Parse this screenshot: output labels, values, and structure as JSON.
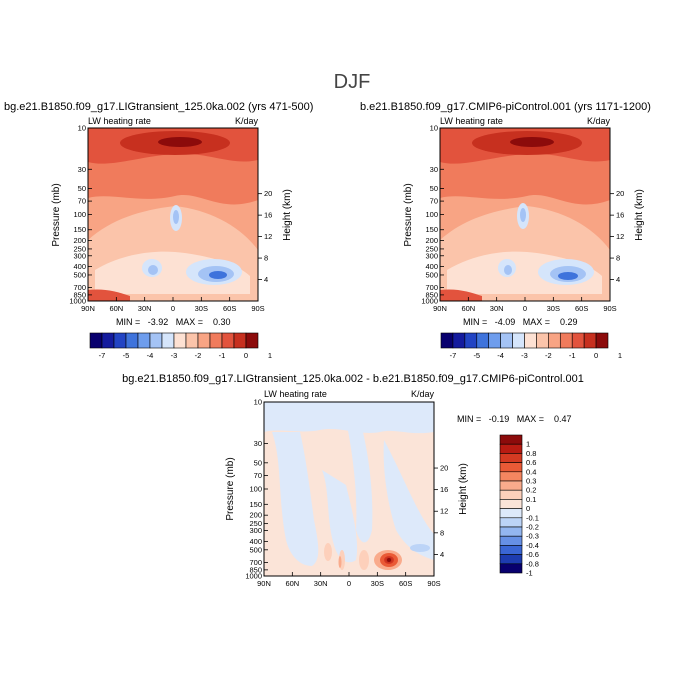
{
  "season": "DJF",
  "panels": [
    {
      "title": "bg.e21.B1850.f09_g17.LIGtransient_125.0ka.002 (yrs 471-500)",
      "var_label": "LW heating rate",
      "units": "K/day",
      "ylabel": "Pressure (mb)",
      "y2label": "Height (km)",
      "stats": "MIN =   -3.92   MAX =    0.30"
    },
    {
      "title": "b.e21.B1850.f09_g17.CMIP6-piControl.001 (yrs 1171-1200)",
      "var_label": "LW heating rate",
      "units": "K/day",
      "ylabel": "Pressure (mb)",
      "y2label": "Height (km)",
      "stats": "MIN =   -4.09   MAX =    0.29"
    },
    {
      "title": "bg.e21.B1850.f09_g17.LIGtransient_125.0ka.002 - b.e21.B1850.f09_g17.CMIP6-piControl.001",
      "var_label": "LW heating rate",
      "units": "K/day",
      "ylabel": "Pressure (mb)",
      "y2label": "Height (km)",
      "stats": "MIN =   -0.19   MAX =    0.47"
    }
  ],
  "chart_data": [
    {
      "type": "heatmap",
      "title": "bg.e21.B1850.f09_g17.LIGtransient_125.0ka.002 (yrs 471-500)",
      "xlabel": "",
      "ylabel": "Pressure (mb)",
      "y2label": "Height (km)",
      "x_ticks": [
        "90N",
        "60N",
        "30N",
        "0",
        "30S",
        "60S",
        "90S"
      ],
      "y_ticks": [
        10,
        30,
        50,
        70,
        100,
        150,
        200,
        250,
        300,
        400,
        500,
        700,
        850,
        1000
      ],
      "y2_ticks": [
        4,
        8,
        12,
        16,
        20
      ],
      "ylim": [
        1000,
        10
      ],
      "zmin": -3.92,
      "zmax": 0.3,
      "colorbar_levels": [
        "-7",
        "-5",
        "-4",
        "-3",
        "-2",
        "-1",
        "0",
        "1"
      ]
    },
    {
      "type": "heatmap",
      "title": "b.e21.B1850.f09_g17.CMIP6-piControl.001 (yrs 1171-1200)",
      "xlabel": "",
      "ylabel": "Pressure (mb)",
      "y2label": "Height (km)",
      "x_ticks": [
        "90N",
        "60N",
        "30N",
        "0",
        "30S",
        "60S",
        "90S"
      ],
      "y_ticks": [
        10,
        30,
        50,
        70,
        100,
        150,
        200,
        250,
        300,
        400,
        500,
        700,
        850,
        1000
      ],
      "y2_ticks": [
        4,
        8,
        12,
        16,
        20
      ],
      "ylim": [
        1000,
        10
      ],
      "zmin": -4.09,
      "zmax": 0.29,
      "colorbar_levels": [
        "-7",
        "-5",
        "-4",
        "-3",
        "-2",
        "-1",
        "0",
        "1"
      ]
    },
    {
      "type": "heatmap",
      "title": "bg.e21.B1850.f09_g17.LIGtransient_125.0ka.002 - b.e21.B1850.f09_g17.CMIP6-piControl.001",
      "xlabel": "",
      "ylabel": "Pressure (mb)",
      "y2label": "Height (km)",
      "x_ticks": [
        "90N",
        "60N",
        "30N",
        "0",
        "30S",
        "60S",
        "90S"
      ],
      "y_ticks": [
        10,
        30,
        50,
        70,
        100,
        150,
        200,
        250,
        300,
        400,
        500,
        700,
        850,
        1000
      ],
      "y2_ticks": [
        4,
        8,
        12,
        16,
        20
      ],
      "ylim": [
        1000,
        10
      ],
      "zmin": -0.19,
      "zmax": 0.47,
      "colorbar_levels": [
        "1",
        "0.8",
        "0.6",
        "0.4",
        "0.3",
        "0.2",
        "0.1",
        "0",
        "-0.1",
        "-0.2",
        "-0.3",
        "-0.4",
        "-0.6",
        "-0.8",
        "-1"
      ]
    }
  ],
  "colors": {
    "full_scale": [
      "#08006e",
      "#141b9e",
      "#2244c4",
      "#3e73dc",
      "#6e9ded",
      "#a4c3f5",
      "#d5e5fb",
      "#fde1d3",
      "#fbc4aa",
      "#f8a484",
      "#f07b5c",
      "#e2533d",
      "#c7301f",
      "#8c0b0b"
    ],
    "diff_scale": [
      "#8c0b0b",
      "#b81b12",
      "#d43a22",
      "#ea5a36",
      "#f58660",
      "#f9ab8c",
      "#fdd0bb",
      "#fbe4d8",
      "#dde9fa",
      "#bcd4f7",
      "#93b6f0",
      "#6690e5",
      "#3a66d4",
      "#1d3cb0",
      "#08006e"
    ]
  }
}
